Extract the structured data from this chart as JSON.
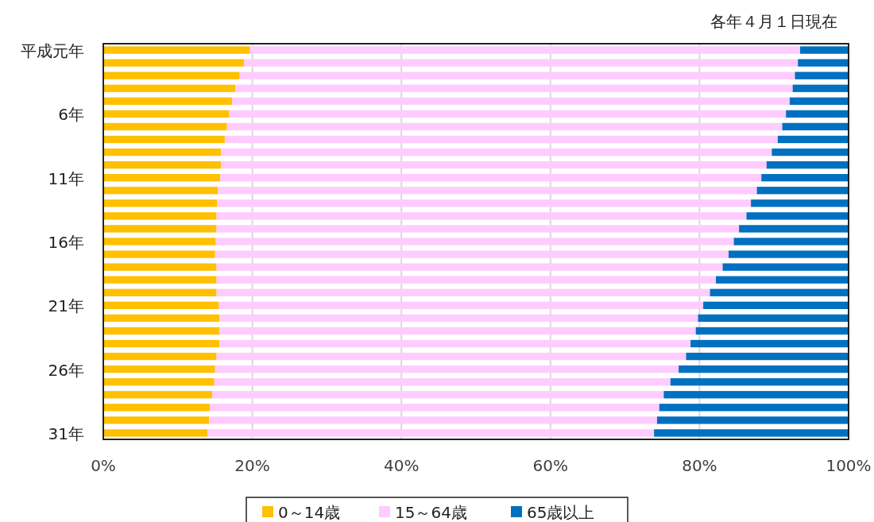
{
  "chart_data": {
    "type": "bar",
    "orientation": "horizontal",
    "stacked": true,
    "categories": [
      "平成元年",
      null,
      null,
      null,
      null,
      "6年",
      null,
      null,
      null,
      null,
      "11年",
      null,
      null,
      null,
      null,
      "16年",
      null,
      null,
      null,
      null,
      "21年",
      null,
      null,
      null,
      null,
      "26年",
      null,
      null,
      null,
      null,
      "31年"
    ],
    "series": [
      {
        "name": "0～14歳",
        "color": "#ffc000",
        "values": [
          19.7,
          18.9,
          18.3,
          17.7,
          17.3,
          16.9,
          16.6,
          16.3,
          15.8,
          15.8,
          15.7,
          15.4,
          15.3,
          15.2,
          15.2,
          15.1,
          15.0,
          15.2,
          15.2,
          15.2,
          15.5,
          15.6,
          15.6,
          15.6,
          15.2,
          15.0,
          14.9,
          14.6,
          14.3,
          14.2,
          14.0
        ]
      },
      {
        "name": "15～64歳",
        "color": "#ffccff",
        "values": [
          73.8,
          74.3,
          74.5,
          74.8,
          74.8,
          74.7,
          74.5,
          74.2,
          73.9,
          73.2,
          72.6,
          72.3,
          71.6,
          71.1,
          70.1,
          69.5,
          68.9,
          67.9,
          67.0,
          66.2,
          65.0,
          64.2,
          63.9,
          63.2,
          63.0,
          62.2,
          61.2,
          60.6,
          60.3,
          60.1,
          59.9
        ]
      },
      {
        "name": "65歳以上",
        "color": "#0070c0",
        "values": [
          6.5,
          6.8,
          7.2,
          7.5,
          7.9,
          8.4,
          8.9,
          9.5,
          10.3,
          11.0,
          11.7,
          12.3,
          13.1,
          13.7,
          14.7,
          15.4,
          16.1,
          16.9,
          17.8,
          18.6,
          19.5,
          20.2,
          20.5,
          21.2,
          21.8,
          22.8,
          23.9,
          24.8,
          25.4,
          25.7,
          26.1
        ]
      }
    ],
    "xlim": [
      0,
      100
    ],
    "xticks": [
      {
        "value": 0,
        "label": "0%"
      },
      {
        "value": 20,
        "label": "20%"
      },
      {
        "value": 40,
        "label": "40%"
      },
      {
        "value": 60,
        "label": "60%"
      },
      {
        "value": 80,
        "label": "80%"
      },
      {
        "value": 100,
        "label": "100%"
      }
    ],
    "grid": "x",
    "legend": "bottom",
    "annotations": [
      "各年４月１日現在"
    ]
  }
}
